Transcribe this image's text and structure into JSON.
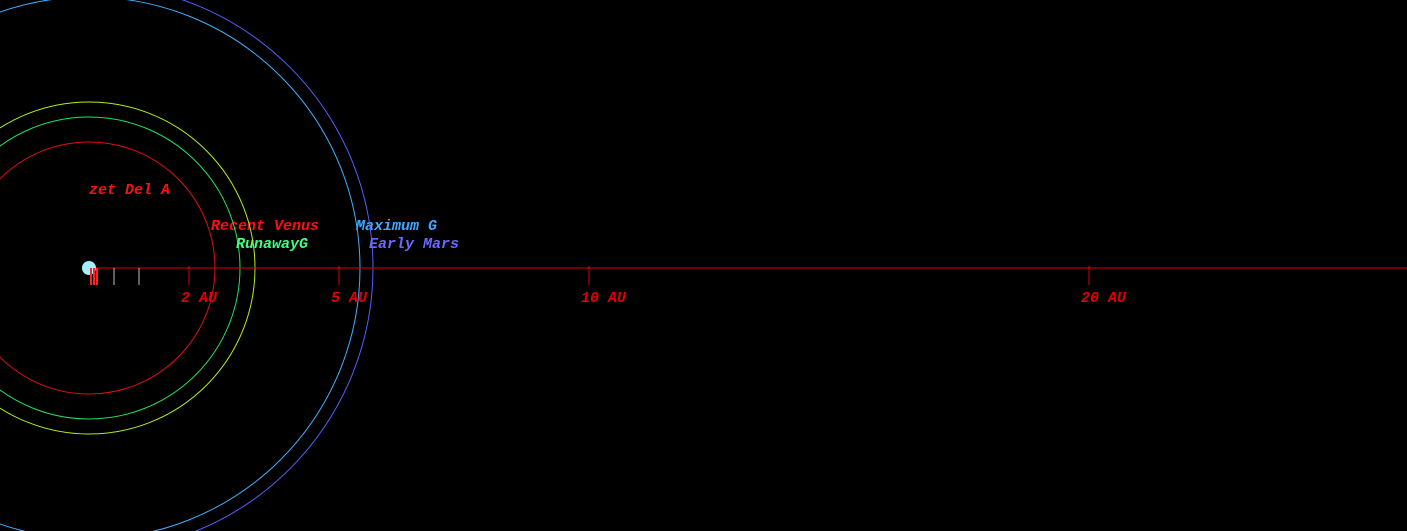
{
  "chart_data": {
    "type": "orbit",
    "star": {
      "name": "zet Del A",
      "color": "#a0f0ff"
    },
    "xlim": [
      0,
      26.36
    ],
    "xticks": [
      {
        "value": 2,
        "label": "2 AU"
      },
      {
        "value": 5,
        "label": "5 AU"
      },
      {
        "value": 10,
        "label": "10 AU"
      },
      {
        "value": 20,
        "label": "20 AU"
      }
    ],
    "minor_ticks": [
      0.5,
      1
    ],
    "planets": [
      0.04,
      0.1,
      0.16
    ],
    "zones": [
      {
        "name": "Recent Venus",
        "color": "#e01010",
        "label_color": "#ff1010",
        "radius": 2.52
      },
      {
        "name": "RunawayG",
        "color": "#20e060",
        "label_color": "#40ff80",
        "radius": 3.02
      },
      {
        "name": null,
        "color": "#b0f020",
        "label_color": null,
        "radius": 3.32
      },
      {
        "name": "Maximum G",
        "color": "#40b0ff",
        "label_color": "#40a8ff",
        "radius": 5.42
      },
      {
        "name": "Early Mars",
        "color": "#5060ff",
        "label_color": "#6a6aff",
        "radius": 5.68
      }
    ],
    "axis_color": "#e00000"
  }
}
